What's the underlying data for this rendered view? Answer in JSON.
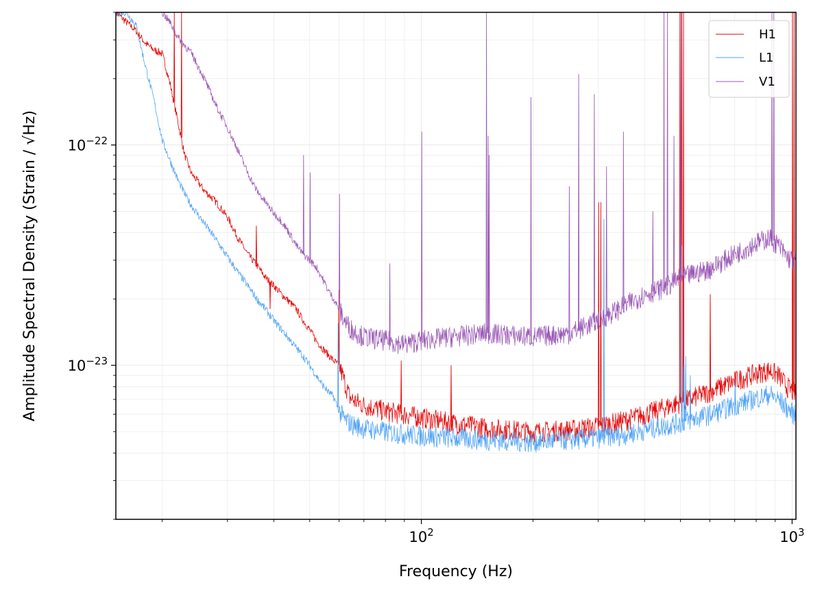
{
  "chart_data": {
    "type": "line",
    "title": "",
    "xlabel": "Frequency (Hz)",
    "ylabel": "Amplitude Spectral Density (Strain / √Hz)",
    "xscale": "log",
    "yscale": "log",
    "xlim": [
      15,
      1024
    ],
    "ylim": [
      2e-24,
      4e-22
    ],
    "grid": true,
    "legend_position": "top-right",
    "x_major_ticks": [
      {
        "value": 100,
        "base": "10",
        "exp": "2"
      },
      {
        "value": 1000,
        "base": "10",
        "exp": "3"
      }
    ],
    "y_major_ticks": [
      {
        "value": 1e-23,
        "base": "10",
        "exp": "−23"
      },
      {
        "value": 1e-22,
        "base": "10",
        "exp": "−22"
      }
    ],
    "series": [
      {
        "name": "H1",
        "color": "#e60000",
        "points": [
          [
            15,
            4e-22
          ],
          [
            17,
            3.3e-22
          ],
          [
            18,
            2.9e-22
          ],
          [
            19,
            2.7e-22
          ],
          [
            20,
            2.6e-22
          ],
          [
            21,
            1.9e-22
          ],
          [
            22,
            1.3e-22
          ],
          [
            23,
            9e-23
          ],
          [
            24,
            7.4e-23
          ],
          [
            25,
            6.8e-23
          ],
          [
            26,
            6.2e-23
          ],
          [
            28,
            5.5e-23
          ],
          [
            30,
            4.7e-23
          ],
          [
            32,
            3.8e-23
          ],
          [
            34,
            3.2e-23
          ],
          [
            36,
            2.85e-23
          ],
          [
            38,
            2.5e-23
          ],
          [
            40,
            2.3e-23
          ],
          [
            42,
            2.1e-23
          ],
          [
            44,
            1.95e-23
          ],
          [
            46,
            1.8e-23
          ],
          [
            48,
            1.6e-23
          ],
          [
            50,
            1.45e-23
          ],
          [
            52,
            1.3e-23
          ],
          [
            54,
            1.2e-23
          ],
          [
            56,
            1.12e-23
          ],
          [
            58,
            1.05e-23
          ],
          [
            60,
            1e-23
          ],
          [
            62,
            8.5e-24
          ],
          [
            64,
            7.2e-24
          ],
          [
            66,
            6.9e-24
          ],
          [
            70,
            6.6e-24
          ],
          [
            75,
            6.4e-24
          ],
          [
            80,
            6.2e-24
          ],
          [
            90,
            6e-24
          ],
          [
            100,
            5.8e-24
          ],
          [
            120,
            5.5e-24
          ],
          [
            150,
            5.2e-24
          ],
          [
            200,
            5e-24
          ],
          [
            250,
            5.1e-24
          ],
          [
            300,
            5.3e-24
          ],
          [
            350,
            5.6e-24
          ],
          [
            400,
            6e-24
          ],
          [
            500,
            6.8e-24
          ],
          [
            600,
            7.6e-24
          ],
          [
            700,
            8.5e-24
          ],
          [
            800,
            9.2e-24
          ],
          [
            870,
            9.5e-24
          ],
          [
            920,
            9e-24
          ],
          [
            970,
            8e-24
          ],
          [
            1024,
            7.4e-24
          ]
        ],
        "spikes": [
          [
            21.5,
            4e-22
          ],
          [
            22.5,
            4e-22
          ],
          [
            35.8,
            4.3e-23
          ],
          [
            39,
            1.8e-23
          ],
          [
            46,
            1.8e-23
          ],
          [
            59.8,
            2.2e-23
          ],
          [
            88,
            1.05e-23
          ],
          [
            120,
            1e-23
          ],
          [
            300,
            5.5e-23
          ],
          [
            304,
            5.5e-23
          ],
          [
            497,
            4e-22
          ],
          [
            503,
            4e-22
          ],
          [
            508,
            4e-22
          ],
          [
            600,
            2.1e-23
          ],
          [
            1000,
            4e-22
          ],
          [
            1010,
            4e-22
          ]
        ]
      },
      {
        "name": "L1",
        "color": "#4fa3f7",
        "points": [
          [
            15,
            4e-22
          ],
          [
            16,
            4e-22
          ],
          [
            17,
            3.5e-22
          ],
          [
            18,
            2.3e-22
          ],
          [
            19,
            1.6e-22
          ],
          [
            20,
            1.05e-22
          ],
          [
            21,
            8.5e-23
          ],
          [
            22,
            7e-23
          ],
          [
            23,
            6e-23
          ],
          [
            24,
            5.3e-23
          ],
          [
            26,
            4.4e-23
          ],
          [
            28,
            3.7e-23
          ],
          [
            30,
            3.1e-23
          ],
          [
            32,
            2.65e-23
          ],
          [
            34,
            2.3e-23
          ],
          [
            36,
            2e-23
          ],
          [
            38,
            1.8e-23
          ],
          [
            40,
            1.6e-23
          ],
          [
            42,
            1.45e-23
          ],
          [
            44,
            1.32e-23
          ],
          [
            46,
            1.2e-23
          ],
          [
            48,
            1.1e-23
          ],
          [
            50,
            1e-23
          ],
          [
            52,
            9e-24
          ],
          [
            54,
            8.2e-24
          ],
          [
            56,
            7.6e-24
          ],
          [
            58,
            7.2e-24
          ],
          [
            60,
            6.2e-24
          ],
          [
            62,
            5.7e-24
          ],
          [
            65,
            5.4e-24
          ],
          [
            70,
            5.2e-24
          ],
          [
            80,
            5e-24
          ],
          [
            100,
            4.8e-24
          ],
          [
            120,
            4.7e-24
          ],
          [
            150,
            4.6e-24
          ],
          [
            200,
            4.5e-24
          ],
          [
            250,
            4.6e-24
          ],
          [
            300,
            4.7e-24
          ],
          [
            350,
            4.85e-24
          ],
          [
            400,
            5.1e-24
          ],
          [
            500,
            5.5e-24
          ],
          [
            600,
            6e-24
          ],
          [
            700,
            6.6e-24
          ],
          [
            800,
            7.1e-24
          ],
          [
            870,
            7.4e-24
          ],
          [
            920,
            7e-24
          ],
          [
            970,
            6.4e-24
          ],
          [
            1024,
            5.9e-24
          ]
        ],
        "spikes": [
          [
            59.5,
            1.55e-23
          ],
          [
            310,
            4.6e-23
          ],
          [
            503,
            3.5e-23
          ],
          [
            510,
            1e-23
          ],
          [
            515,
            1.1e-23
          ],
          [
            530,
            9e-24
          ],
          [
            700,
            8.5e-24
          ]
        ]
      },
      {
        "name": "V1",
        "color": "#9b59b6",
        "points": [
          [
            20,
            4e-22
          ],
          [
            21,
            3.6e-22
          ],
          [
            22,
            3.1e-22
          ],
          [
            24,
            2.6e-22
          ],
          [
            26,
            2e-22
          ],
          [
            28,
            1.5e-22
          ],
          [
            30,
            1.2e-22
          ],
          [
            32,
            9.5e-23
          ],
          [
            34,
            7.5e-23
          ],
          [
            36,
            6.2e-23
          ],
          [
            38,
            5.5e-23
          ],
          [
            40,
            4.9e-23
          ],
          [
            42,
            4.5e-23
          ],
          [
            44,
            4e-23
          ],
          [
            46,
            3.5e-23
          ],
          [
            48,
            3.2e-23
          ],
          [
            50,
            3e-23
          ],
          [
            52,
            2.8e-23
          ],
          [
            54,
            2.5e-23
          ],
          [
            56,
            2.2e-23
          ],
          [
            58,
            2e-23
          ],
          [
            60,
            1.8e-23
          ],
          [
            62,
            1.6e-23
          ],
          [
            65,
            1.45e-23
          ],
          [
            70,
            1.35e-23
          ],
          [
            80,
            1.3e-23
          ],
          [
            90,
            1.25e-23
          ],
          [
            100,
            1.3e-23
          ],
          [
            120,
            1.35e-23
          ],
          [
            150,
            1.4e-23
          ],
          [
            200,
            1.35e-23
          ],
          [
            250,
            1.4e-23
          ],
          [
            300,
            1.6e-23
          ],
          [
            350,
            1.85e-23
          ],
          [
            400,
            2.1e-23
          ],
          [
            450,
            2.25e-23
          ],
          [
            500,
            2.5e-23
          ],
          [
            600,
            2.75e-23
          ],
          [
            700,
            3.2e-23
          ],
          [
            800,
            3.6e-23
          ],
          [
            870,
            3.8e-23
          ],
          [
            920,
            3.5e-23
          ],
          [
            970,
            3.1e-23
          ],
          [
            1024,
            2.95e-23
          ]
        ],
        "spikes": [
          [
            48,
            9e-23
          ],
          [
            50,
            7.5e-23
          ],
          [
            60,
            6e-23
          ],
          [
            82,
            2.9e-23
          ],
          [
            100,
            1.15e-22
          ],
          [
            149.5,
            4e-22
          ],
          [
            151,
            1.1e-22
          ],
          [
            152,
            9e-23
          ],
          [
            197,
            1.65e-22
          ],
          [
            250,
            6.5e-23
          ],
          [
            265,
            2.1e-22
          ],
          [
            292,
            1.7e-22
          ],
          [
            315,
            8e-23
          ],
          [
            350,
            1.15e-22
          ],
          [
            420,
            5e-23
          ],
          [
            450,
            4e-22
          ],
          [
            460,
            4e-22
          ],
          [
            479,
            1.1e-22
          ],
          [
            500,
            4e-22
          ],
          [
            880,
            4e-22
          ],
          [
            890,
            4e-22
          ]
        ]
      }
    ]
  }
}
